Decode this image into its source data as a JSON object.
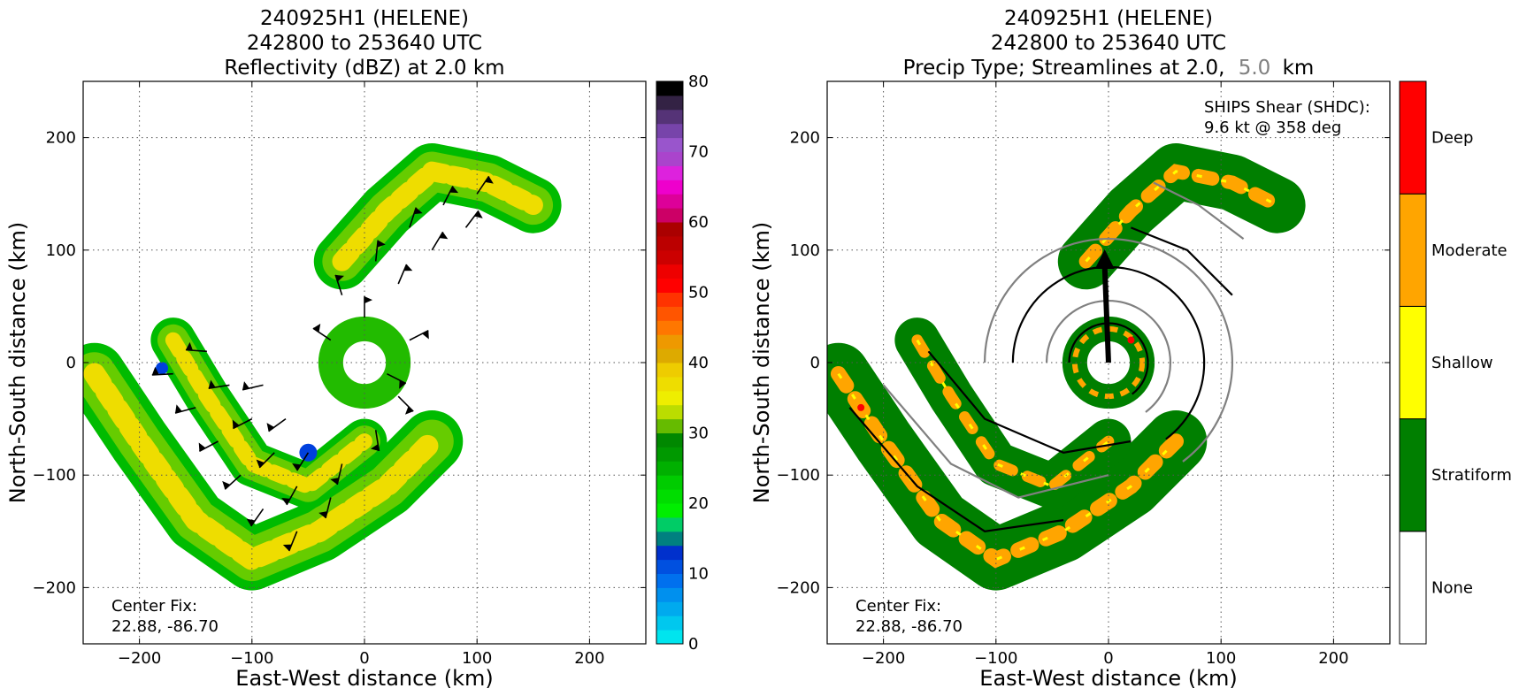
{
  "chart_data": [
    {
      "type": "heatmap",
      "title_lines": [
        "240925H1 (HELENE)",
        "242800 to 253640 UTC",
        "Reflectivity (dBZ) at 2.0 km"
      ],
      "xlabel": "East-West distance (km)",
      "ylabel": "North-South distance (km)",
      "xlim": [
        -250,
        250
      ],
      "ylim": [
        -250,
        250
      ],
      "xticks": [
        -200,
        -100,
        0,
        100,
        200
      ],
      "yticks": [
        -200,
        -100,
        0,
        100,
        200
      ],
      "xtick_labels": [
        "−200",
        "−100",
        "0",
        "100",
        "200"
      ],
      "ytick_labels": [
        "−200",
        "−100",
        "0",
        "100",
        "200"
      ],
      "grid": true,
      "annotation": {
        "line1": "Center Fix:",
        "line2": "22.88, -86.70"
      },
      "colorbar": {
        "range": [
          0,
          80
        ],
        "tick_values": [
          0,
          10,
          20,
          30,
          40,
          50,
          60,
          70,
          80
        ],
        "tick_labels": [
          "0",
          "10",
          "20",
          "30",
          "40",
          "50",
          "60",
          "70",
          "80"
        ],
        "colors": [
          "#00e5ee",
          "#00c8ee",
          "#00aaee",
          "#0090ee",
          "#0070ee",
          "#0050e0",
          "#0030cc",
          "#008080",
          "#00cc66",
          "#00ee00",
          "#00dd00",
          "#00cc00",
          "#00b000",
          "#009900",
          "#008800",
          "#66bb00",
          "#bbdd00",
          "#eeee00",
          "#eedd00",
          "#eecc00",
          "#ddaa00",
          "#ee9900",
          "#ff7700",
          "#ff5500",
          "#ff3300",
          "#ff0000",
          "#ee0000",
          "#cc0000",
          "#bb0000",
          "#aa0000",
          "#cc0066",
          "#dd0099",
          "#ee00cc",
          "#dd22dd",
          "#aa44cc",
          "#9955cc",
          "#7744aa",
          "#553377",
          "#332244",
          "#000000"
        ]
      },
      "features": [
        {
          "name": "northeast rainband",
          "points": [
            [
              -20,
              90
            ],
            [
              20,
              135
            ],
            [
              60,
              170
            ],
            [
              110,
              160
            ],
            [
              150,
              140
            ]
          ],
          "width_km": 50,
          "value_dbz": 30
        },
        {
          "name": "southwest rainband",
          "points": [
            [
              -240,
              -10
            ],
            [
              -200,
              -70
            ],
            [
              -150,
              -140
            ],
            [
              -100,
              -175
            ],
            [
              -40,
              -150
            ],
            [
              20,
              -110
            ],
            [
              60,
              -70
            ]
          ],
          "width_km": 55,
          "value_dbz": 28
        },
        {
          "name": "inner band",
          "points": [
            [
              -170,
              20
            ],
            [
              -140,
              -30
            ],
            [
              -100,
              -90
            ],
            [
              -50,
              -110
            ],
            [
              0,
              -70
            ]
          ],
          "width_km": 40,
          "value_dbz": 32
        }
      ],
      "wind_barbs": [
        [
          -170,
          -10
        ],
        [
          -150,
          -40
        ],
        [
          -130,
          -70
        ],
        [
          -110,
          -100
        ],
        [
          -90,
          -130
        ],
        [
          -60,
          -150
        ],
        [
          -140,
          10
        ],
        [
          -120,
          -20
        ],
        [
          -100,
          -50
        ],
        [
          -80,
          -80
        ],
        [
          -60,
          -110
        ],
        [
          -30,
          -120
        ],
        [
          -90,
          -20
        ],
        [
          -70,
          -50
        ],
        [
          -50,
          -80
        ],
        [
          -20,
          -90
        ],
        [
          10,
          -60
        ],
        [
          30,
          -30
        ],
        [
          -30,
          20
        ],
        [
          -20,
          60
        ],
        [
          10,
          90
        ],
        [
          40,
          120
        ],
        [
          70,
          140
        ],
        [
          100,
          150
        ],
        [
          0,
          40
        ],
        [
          30,
          70
        ],
        [
          60,
          100
        ],
        [
          90,
          120
        ],
        [
          20,
          -10
        ],
        [
          40,
          20
        ]
      ]
    },
    {
      "type": "heatmap",
      "title_lines": [
        "240925H1 (HELENE)",
        "242800 to 253640 UTC",
        "Precip Type; Streamlines at 2.0,",
        "5.0",
        "km"
      ],
      "xlabel": "East-West distance (km)",
      "ylabel": "North-South distance (km)",
      "xlim": [
        -250,
        250
      ],
      "ylim": [
        -250,
        250
      ],
      "xticks": [
        -200,
        -100,
        0,
        100,
        200
      ],
      "yticks": [
        -200,
        -100,
        0,
        100,
        200
      ],
      "xtick_labels": [
        "−200",
        "−100",
        "0",
        "100",
        "200"
      ],
      "ytick_labels": [
        "−200",
        "−100",
        "0",
        "100",
        "200"
      ],
      "grid": true,
      "annotation": {
        "line1": "Center Fix:",
        "line2": "22.88, -86.70"
      },
      "shear_note": {
        "line1": "SHIPS Shear (SHDC):",
        "line2": "9.6 kt @ 358 deg"
      },
      "shear_vector": {
        "speed_kt": 9.6,
        "direction_deg": 358
      },
      "categories": [
        "None",
        "Stratiform",
        "Shallow",
        "Moderate",
        "Deep"
      ],
      "category_colors": [
        "#ffffff",
        "#007f00",
        "#ffff00",
        "#ffa500",
        "#ff0000"
      ],
      "streamline_colors": {
        "2.0 km": "#000000",
        "5.0 km": "#808080"
      }
    }
  ]
}
